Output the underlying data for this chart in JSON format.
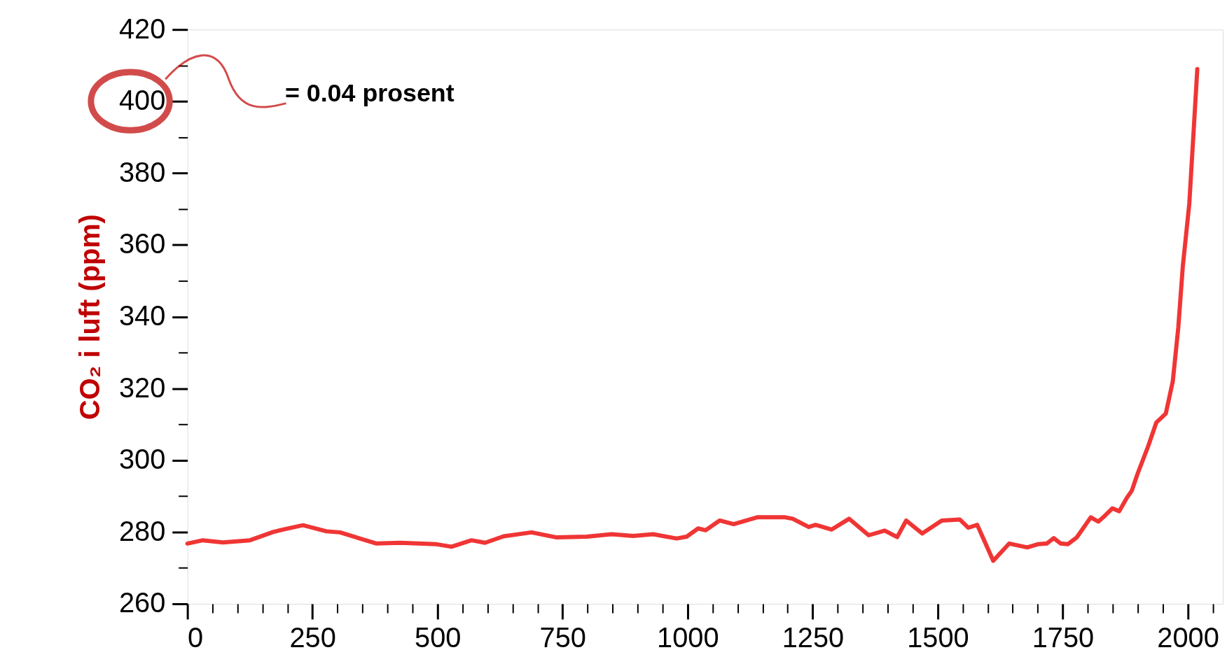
{
  "chart_data": {
    "type": "line",
    "ylabel": "CO₂ i luft (ppm)",
    "annotations": [
      "= 0.04 prosent"
    ],
    "xlim": [
      0,
      2070
    ],
    "ylim": [
      260,
      420
    ],
    "xticks": [
      0,
      {
        "value": 50,
        "label": null
      },
      {
        "value": 100,
        "label": null
      },
      {
        "value": 150,
        "label": null
      },
      {
        "value": 200,
        "label": null
      },
      250,
      {
        "value": 300,
        "label": null
      },
      {
        "value": 350,
        "label": null
      },
      {
        "value": 400,
        "label": null
      },
      {
        "value": 450,
        "label": null
      },
      500,
      {
        "value": 550,
        "label": null
      },
      {
        "value": 600,
        "label": null
      },
      {
        "value": 650,
        "label": null
      },
      {
        "value": 700,
        "label": null
      },
      750,
      {
        "value": 800,
        "label": null
      },
      {
        "value": 850,
        "label": null
      },
      {
        "value": 900,
        "label": null
      },
      {
        "value": 950,
        "label": null
      },
      1000,
      {
        "value": 1050,
        "label": null
      },
      {
        "value": 1100,
        "label": null
      },
      {
        "value": 1150,
        "label": null
      },
      {
        "value": 1200,
        "label": null
      },
      1250,
      {
        "value": 1300,
        "label": null
      },
      {
        "value": 1350,
        "label": null
      },
      {
        "value": 1400,
        "label": null
      },
      {
        "value": 1450,
        "label": null
      },
      1500,
      {
        "value": 1550,
        "label": null
      },
      {
        "value": 1600,
        "label": null
      },
      {
        "value": 1650,
        "label": null
      },
      {
        "value": 1700,
        "label": null
      },
      1750,
      {
        "value": 1800,
        "label": null
      },
      {
        "value": 1850,
        "label": null
      },
      {
        "value": 1900,
        "label": null
      },
      {
        "value": 1950,
        "label": null
      },
      2000,
      {
        "value": 2050,
        "label": null
      }
    ],
    "yticks": [
      260,
      {
        "value": 270,
        "label": null
      },
      280,
      {
        "value": 290,
        "label": null
      },
      300,
      {
        "value": 310,
        "label": null
      },
      320,
      {
        "value": 330,
        "label": null
      },
      340,
      {
        "value": 350,
        "label": null
      },
      360,
      {
        "value": 370,
        "label": null
      },
      380,
      {
        "value": 390,
        "label": null
      },
      400,
      {
        "value": 410,
        "label": null
      },
      420
    ],
    "grid": false,
    "marker": "none",
    "line_style": "solid",
    "series": [
      {
        "color": "#f03535",
        "x": [
          0,
          31,
          71,
          125,
          171,
          191,
          231,
          278,
          305,
          378,
          425,
          498,
          528,
          568,
          595,
          632,
          688,
          738,
          798,
          848,
          891,
          931,
          978,
          998,
          1021,
          1036,
          1064,
          1092,
          1139,
          1195,
          1210,
          1242,
          1256,
          1288,
          1323,
          1362,
          1394,
          1419,
          1437,
          1469,
          1508,
          1544,
          1561,
          1579,
          1611,
          1643,
          1679,
          1700,
          1718,
          1732,
          1746,
          1760,
          1778,
          1806,
          1821,
          1831,
          1849,
          1863,
          1878,
          1888,
          1899,
          1921,
          1937,
          1956,
          1970,
          1981,
          1990,
          2003,
          2019
        ],
        "values": [
          276.8,
          277.7,
          277.1,
          277.7,
          280,
          280.7,
          281.9,
          280.2,
          279.9,
          276.8,
          277,
          276.6,
          275.9,
          277.7,
          277,
          278.8,
          279.9,
          278.5,
          278.7,
          279.4,
          278.9,
          279.4,
          278.2,
          278.7,
          281,
          280.5,
          283.2,
          282.2,
          284.1,
          284.1,
          283.7,
          281.4,
          282,
          280.7,
          283.7,
          279.1,
          280.4,
          278.6,
          283.2,
          279.6,
          283.2,
          283.5,
          281.2,
          282,
          272,
          276.8,
          275.7,
          276.6,
          276.8,
          278.3,
          276.8,
          276.6,
          278.5,
          284.1,
          282.9,
          284.1,
          286.6,
          285.8,
          289.5,
          291.5,
          296,
          304,
          310.5,
          313,
          322,
          337,
          354,
          371.5,
          409
        ]
      }
    ]
  }
}
